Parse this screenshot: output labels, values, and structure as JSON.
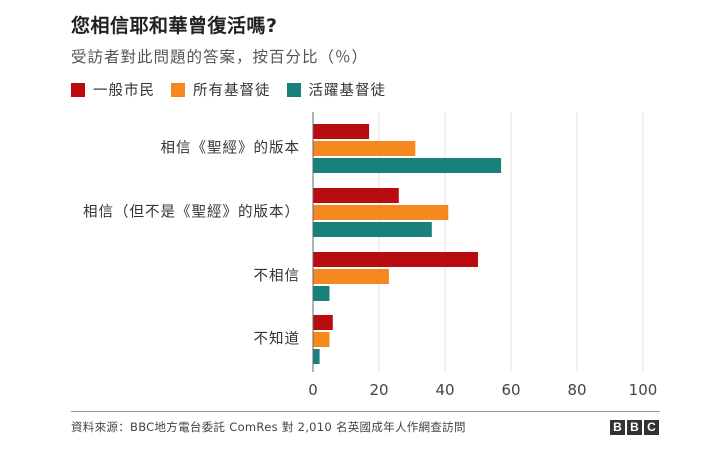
{
  "chart_data": {
    "type": "bar",
    "orientation": "horizontal",
    "title": "您相信耶和華曾復活嗎?",
    "subtitle": "受訪者對此問題的答案，按百分比（％）",
    "categories": [
      "相信《聖經》的版本",
      "相信（但不是《聖經》的版本）",
      "不相信",
      "不知道"
    ],
    "series": [
      {
        "name": "一般市民",
        "color": "#b80c11",
        "values": [
          17,
          26,
          50,
          6
        ]
      },
      {
        "name": "所有基督徒",
        "color": "#f5891f",
        "values": [
          31,
          41,
          23,
          5
        ]
      },
      {
        "name": "活躍基督徒",
        "color": "#1a807a",
        "values": [
          57,
          36,
          5,
          2
        ]
      }
    ],
    "xlim": [
      0,
      100
    ],
    "xticks": [
      0,
      20,
      40,
      60,
      80,
      100
    ],
    "grid": true,
    "legend_position": "top-left"
  },
  "footer": {
    "source": "資料來源：BBC地方電台委託 ComRes 對 2,010 名英國成年人作網查訪問",
    "logo_letters": [
      "B",
      "B",
      "C"
    ]
  }
}
